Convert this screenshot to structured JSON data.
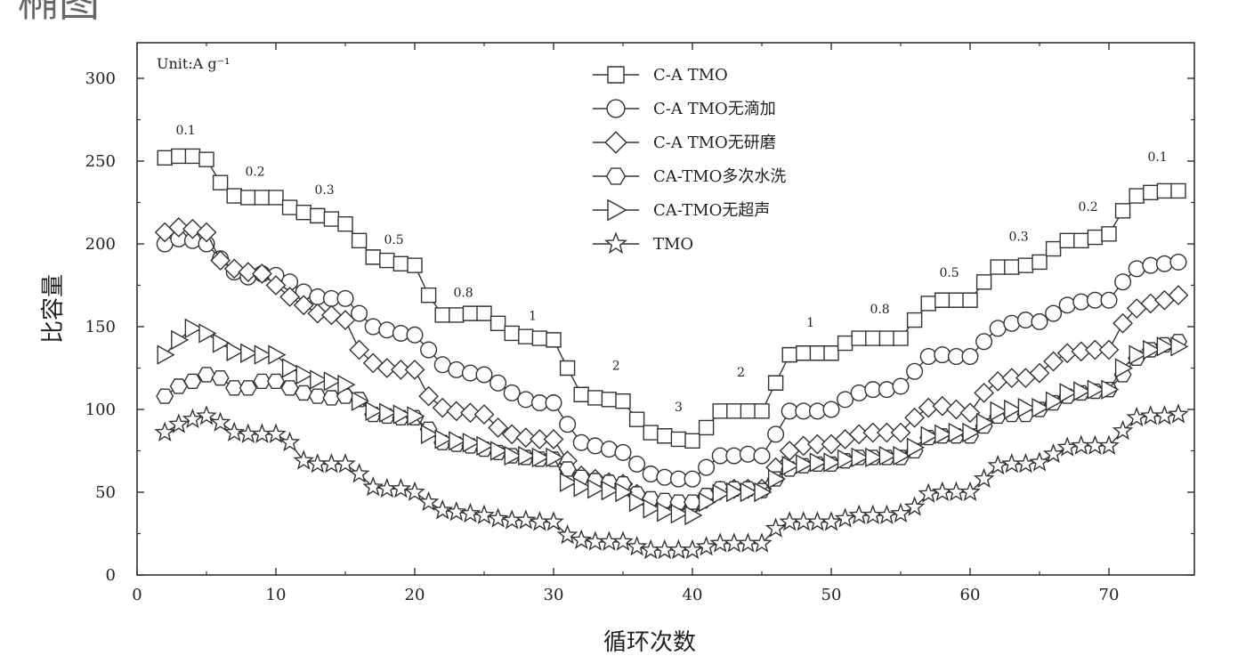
{
  "page_fragment": "椭图",
  "chart_data": {
    "type": "line",
    "title": "",
    "xlabel": "循环次数",
    "ylabel": "比容量",
    "xlim": [
      0,
      76
    ],
    "ylim": [
      0,
      320
    ],
    "xticks": [
      0,
      10,
      20,
      30,
      40,
      50,
      60,
      70
    ],
    "yticks": [
      0,
      50,
      100,
      150,
      200,
      250,
      300
    ],
    "grid": false,
    "legend_position": "top-center",
    "unit_label": "Unit:A g⁻¹",
    "rate_labels": [
      {
        "text": "0.1",
        "x": 3.5,
        "y": 266
      },
      {
        "text": "0.2",
        "x": 8.5,
        "y": 241
      },
      {
        "text": "0.3",
        "x": 13.5,
        "y": 230
      },
      {
        "text": "0.5",
        "x": 18.5,
        "y": 200
      },
      {
        "text": "0.8",
        "x": 23.5,
        "y": 168
      },
      {
        "text": "1",
        "x": 28.5,
        "y": 154
      },
      {
        "text": "2",
        "x": 34.5,
        "y": 124
      },
      {
        "text": "3",
        "x": 39,
        "y": 99
      },
      {
        "text": "2",
        "x": 43.5,
        "y": 120
      },
      {
        "text": "1",
        "x": 48.5,
        "y": 150
      },
      {
        "text": "0.8",
        "x": 53.5,
        "y": 158
      },
      {
        "text": "0.5",
        "x": 58.5,
        "y": 180
      },
      {
        "text": "0.3",
        "x": 63.5,
        "y": 202
      },
      {
        "text": "0.2",
        "x": 68.5,
        "y": 220
      },
      {
        "text": "0.1",
        "x": 73.5,
        "y": 250
      }
    ],
    "x": [
      2,
      3,
      4,
      5,
      6,
      7,
      8,
      9,
      10,
      11,
      12,
      13,
      14,
      15,
      16,
      17,
      18,
      19,
      20,
      21,
      22,
      23,
      24,
      25,
      26,
      27,
      28,
      29,
      30,
      31,
      32,
      33,
      34,
      35,
      36,
      37,
      38,
      39,
      40,
      41,
      42,
      43,
      44,
      45,
      46,
      47,
      48,
      49,
      50,
      51,
      52,
      53,
      54,
      55,
      56,
      57,
      58,
      59,
      60,
      61,
      62,
      63,
      64,
      65,
      66,
      67,
      68,
      69,
      70,
      71,
      72,
      73,
      74,
      75
    ],
    "series": [
      {
        "name": "C-A TMO",
        "marker": "square",
        "values": [
          252,
          253,
          253,
          251,
          237,
          229,
          228,
          228,
          228,
          222,
          219,
          217,
          215,
          212,
          202,
          192,
          190,
          188,
          187,
          169,
          157,
          157,
          158,
          158,
          152,
          146,
          144,
          143,
          142,
          125,
          109,
          107,
          106,
          105,
          94,
          86,
          84,
          82,
          81,
          89,
          99,
          99,
          99,
          99,
          116,
          133,
          134,
          134,
          134,
          140,
          143,
          143,
          143,
          143,
          154,
          164,
          166,
          166,
          166,
          177,
          186,
          186,
          187,
          189,
          197,
          202,
          202,
          204,
          206,
          220,
          229,
          231,
          232,
          232
        ]
      },
      {
        "name": "C-A TMO无滴加",
        "marker": "circle",
        "values": [
          200,
          203,
          202,
          200,
          191,
          183,
          180,
          182,
          181,
          177,
          171,
          168,
          167,
          167,
          158,
          150,
          148,
          146,
          145,
          136,
          127,
          124,
          122,
          121,
          116,
          110,
          106,
          104,
          104,
          91,
          80,
          78,
          76,
          74,
          67,
          61,
          59,
          58,
          58,
          65,
          72,
          72,
          73,
          72,
          85,
          99,
          99,
          99,
          100,
          106,
          110,
          112,
          112,
          114,
          123,
          132,
          133,
          132,
          132,
          141,
          149,
          152,
          154,
          153,
          158,
          163,
          165,
          166,
          166,
          177,
          185,
          187,
          188,
          189
        ]
      },
      {
        "name": "C-A TMO无研磨",
        "marker": "diamond",
        "values": [
          207,
          210,
          209,
          207,
          190,
          185,
          183,
          182,
          175,
          168,
          163,
          158,
          157,
          154,
          136,
          128,
          125,
          124,
          124,
          108,
          101,
          99,
          98,
          97,
          89,
          85,
          83,
          82,
          82,
          69,
          60,
          58,
          56,
          55,
          49,
          44,
          43,
          42,
          42,
          46,
          51,
          52,
          52,
          52,
          65,
          75,
          78,
          79,
          79,
          82,
          85,
          86,
          86,
          86,
          95,
          101,
          102,
          100,
          98,
          110,
          117,
          119,
          119,
          122,
          129,
          134,
          135,
          136,
          136,
          152,
          161,
          164,
          166,
          169
        ]
      },
      {
        "name": "CA-TMO多次水洗",
        "marker": "hexagon",
        "values": [
          108,
          114,
          117,
          121,
          119,
          113,
          113,
          117,
          117,
          113,
          110,
          108,
          107,
          108,
          106,
          97,
          96,
          95,
          95,
          88,
          80,
          79,
          78,
          76,
          74,
          72,
          71,
          70,
          70,
          64,
          59,
          57,
          56,
          55,
          49,
          46,
          45,
          44,
          44,
          48,
          52,
          52,
          52,
          51,
          58,
          64,
          66,
          67,
          67,
          69,
          71,
          71,
          71,
          71,
          75,
          83,
          84,
          84,
          84,
          90,
          96,
          97,
          97,
          100,
          104,
          108,
          110,
          111,
          112,
          121,
          131,
          136,
          139,
          141
        ]
      },
      {
        "name": "CA-TMO无超声",
        "marker": "triangle-right",
        "values": [
          133,
          142,
          149,
          146,
          140,
          135,
          134,
          133,
          133,
          125,
          121,
          118,
          117,
          115,
          105,
          99,
          98,
          97,
          96,
          85,
          82,
          81,
          80,
          78,
          75,
          72,
          72,
          71,
          71,
          56,
          53,
          52,
          51,
          50,
          44,
          40,
          38,
          37,
          36,
          44,
          49,
          50,
          50,
          50,
          58,
          66,
          67,
          68,
          68,
          70,
          71,
          71,
          72,
          72,
          77,
          84,
          85,
          86,
          86,
          92,
          99,
          100,
          101,
          101,
          105,
          110,
          111,
          112,
          112,
          125,
          133,
          136,
          138,
          138
        ]
      },
      {
        "name": "TMO",
        "marker": "star",
        "values": [
          86,
          91,
          94,
          96,
          92,
          86,
          85,
          85,
          85,
          80,
          69,
          67,
          67,
          67,
          61,
          53,
          52,
          52,
          50,
          44,
          39,
          38,
          37,
          36,
          34,
          33,
          33,
          32,
          32,
          24,
          21,
          20,
          20,
          20,
          17,
          15,
          15,
          15,
          15,
          17,
          19,
          19,
          19,
          19,
          28,
          32,
          32,
          32,
          32,
          34,
          36,
          36,
          36,
          37,
          41,
          49,
          50,
          50,
          50,
          58,
          66,
          67,
          67,
          68,
          73,
          77,
          78,
          78,
          78,
          87,
          95,
          96,
          96,
          97
        ]
      }
    ]
  }
}
